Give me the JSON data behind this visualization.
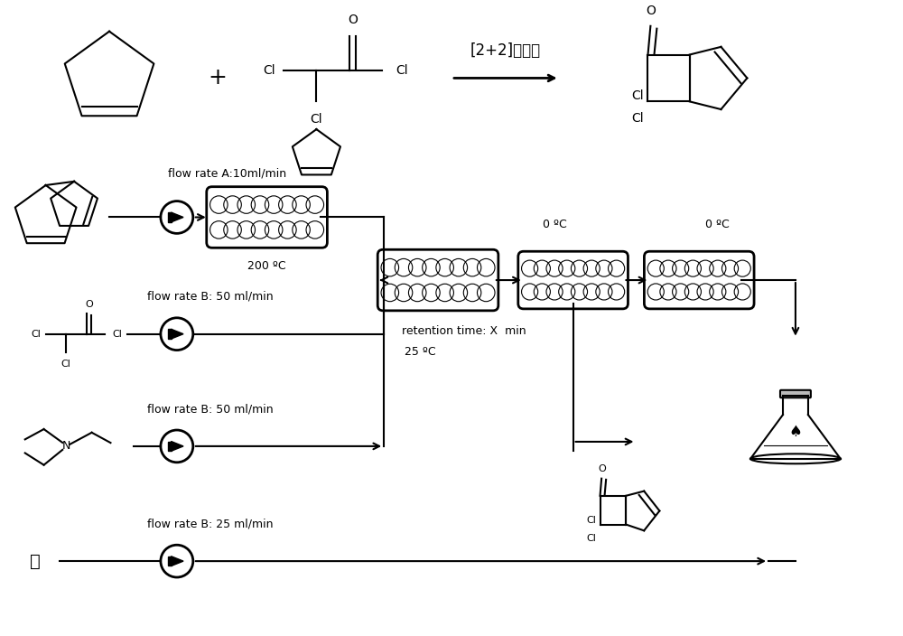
{
  "bg_color": "#ffffff",
  "line_color": "#000000",
  "fig_width": 10.0,
  "fig_height": 7.04,
  "labels": {
    "reaction_label": "[2+2]环加成",
    "flowA": "flow rate A:10ml/min",
    "flowB1": "flow rate B: 50 ml/min",
    "flowB2": "flow rate B: 50 ml/min",
    "flowB3": "flow rate B: 25 ml/min",
    "temp200": "200 ºC",
    "temp25": "25 ºC",
    "temp0_1": "0 ºC",
    "temp0_2": "0 ºC",
    "retention": "retention time: X  min",
    "water": "水"
  }
}
